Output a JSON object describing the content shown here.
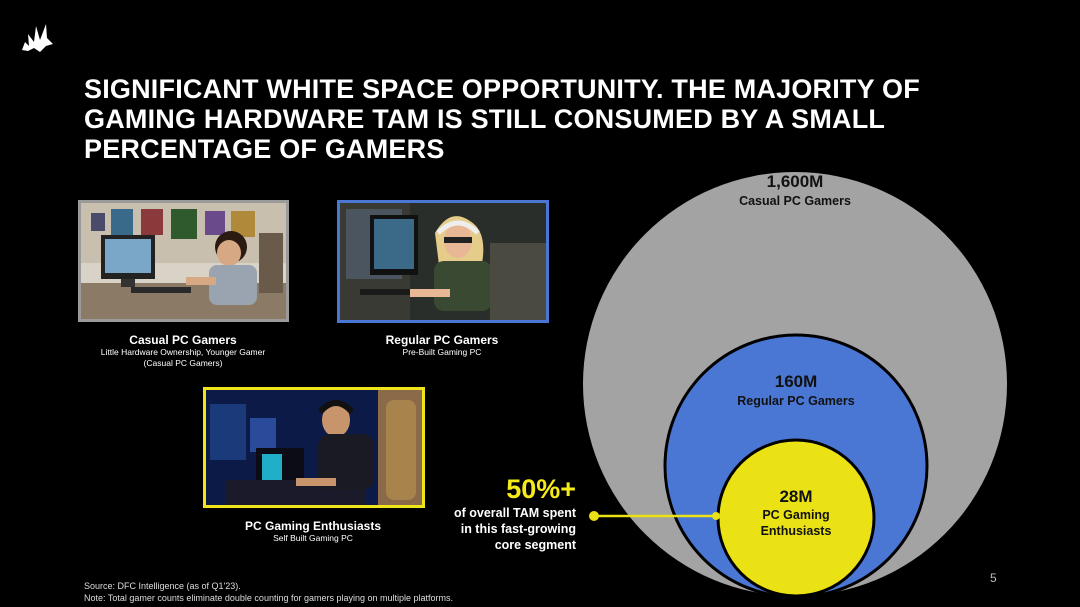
{
  "title": {
    "lines": [
      "SIGNIFICANT WHITE SPACE OPPORTUNITY. THE MAJORITY OF",
      "GAMING HARDWARE TAM IS STILL CONSUMED BY A SMALL",
      "PERCENTAGE OF GAMERS"
    ]
  },
  "segments": {
    "casual": {
      "title": "Casual PC Gamers",
      "sub1": "Little Hardware Ownership, Younger Gamer",
      "sub2": "(Casual PC Gamers)",
      "border": "#9a9a9a"
    },
    "regular": {
      "title": "Regular PC Gamers",
      "sub1": "Pre-Built Gaming PC",
      "border": "#4a77d4"
    },
    "enthusiast": {
      "title": "PC Gaming Enthusiasts",
      "sub1": "Self Built Gaming PC",
      "border": "#f0e51a"
    }
  },
  "circles": {
    "outer": {
      "value": "1,600M",
      "label": "Casual PC Gamers",
      "color": "#a3a3a3"
    },
    "middle": {
      "value": "160M",
      "label": "Regular PC Gamers",
      "color": "#4a77d4"
    },
    "inner": {
      "value": "28M",
      "label_line1": "PC Gaming",
      "label_line2": "Enthusiasts",
      "color": "#eae214"
    }
  },
  "callout": {
    "big": "50%+",
    "line1": "of overall TAM spent",
    "line2": "in this fast-growing",
    "line3": "core segment"
  },
  "footer": {
    "source": "Source: DFC Intelligence (as of Q1'23).",
    "note": "Note: Total gamer counts eliminate double counting for gamers playing on multiple platforms."
  },
  "page_number": "5"
}
